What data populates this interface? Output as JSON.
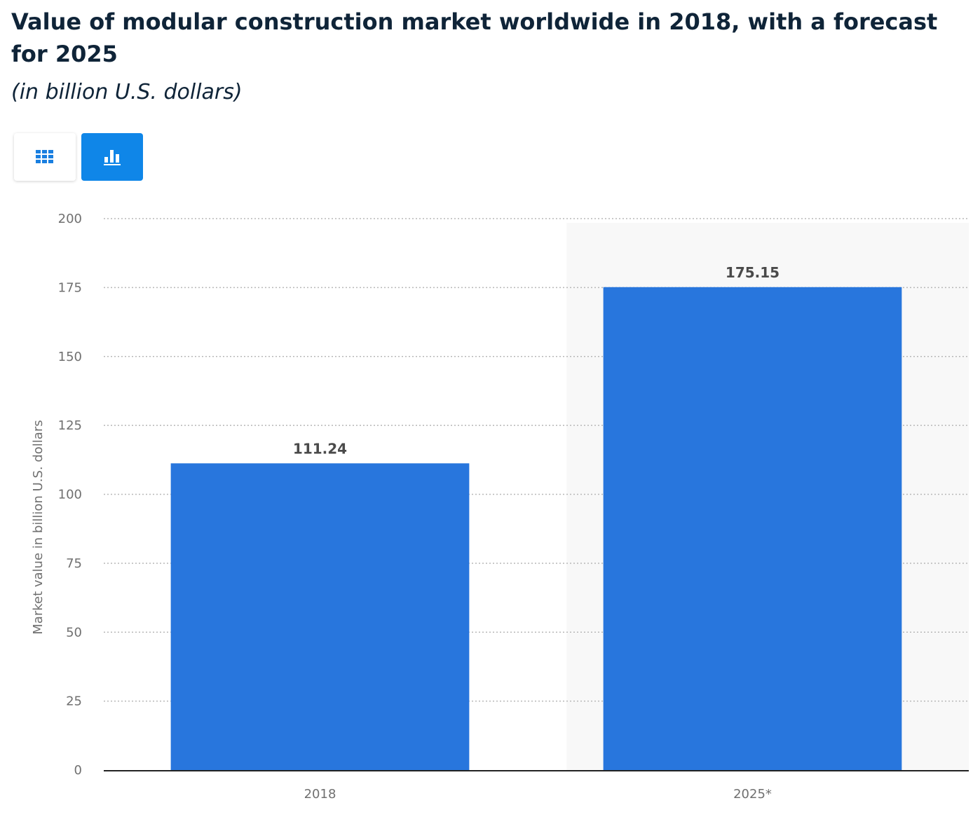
{
  "header": {
    "title": "Value of modular construction market worldwide in 2018, with a forecast for 2025",
    "subtitle": "(in billion U.S. dollars)"
  },
  "toolbar": {
    "table_view_icon": "table-grid-icon",
    "chart_view_icon": "bar-chart-icon",
    "active_view": "chart",
    "accent_color": "#0f86e8"
  },
  "chart_data": {
    "type": "bar",
    "categories": [
      "2018",
      "2025*"
    ],
    "values": [
      111.24,
      175.15
    ],
    "value_labels": [
      "111.24",
      "175.15"
    ],
    "xlabel": "",
    "ylabel": "Market value in billion U.S. dollars",
    "ylim": [
      0,
      200
    ],
    "yticks": [
      0,
      25,
      50,
      75,
      100,
      125,
      150,
      175,
      200
    ],
    "grid": true,
    "forecast_categories": [
      "2025*"
    ],
    "bar_color": "#2876dd",
    "forecast_background": "#f8f8f8"
  }
}
